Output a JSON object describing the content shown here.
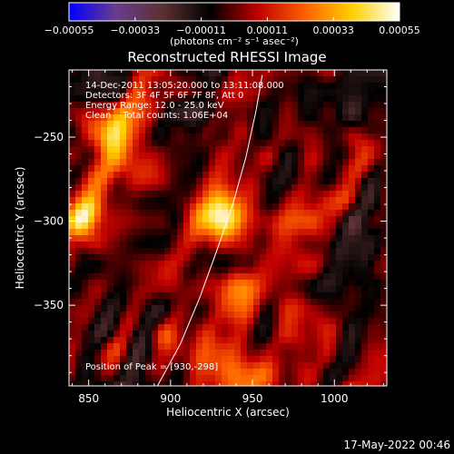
{
  "chart_data": {
    "type": "heatmap",
    "title": "Reconstructed RHESSI Image",
    "xlabel": "Heliocentric X (arcsec)",
    "ylabel": "Heliocentric Y (arcsec)",
    "xlim": [
      838,
      1032
    ],
    "ylim": [
      -398,
      -210
    ],
    "x_ticks": [
      850,
      900,
      950,
      1000
    ],
    "x_tick_labels": [
      "850",
      "900",
      "950",
      "1000"
    ],
    "y_ticks": [
      -250,
      -300,
      -350
    ],
    "y_tick_labels": [
      "−250",
      "−300",
      "−350"
    ],
    "colorbar": {
      "range": [
        -0.00055,
        0.00055
      ],
      "ticks": [
        -0.00055,
        -0.00033,
        -0.00011,
        0.00011,
        0.00033,
        0.00055
      ],
      "tick_labels": [
        "−0.00055",
        "−0.00033",
        "−0.00011",
        "0.00011",
        "0.00033",
        "0.00055"
      ],
      "unit_label": "(photons cm⁻² s⁻¹ asec⁻²)",
      "colors": [
        "#0000ff",
        "#6a3c8c",
        "#5a3030",
        "#000000",
        "#c00000",
        "#ff6000",
        "#ffd000",
        "#ffffff"
      ]
    },
    "annotations": {
      "time_range": "14-Dec-2011 13:05:20.000 to 13:11:08.000",
      "detectors": "Detectors: 3F 4F 5F 6F 7F 8F, Att 0",
      "energy": "Energy Range: 12.0 - 25.0 keV",
      "clean": "Clean    Total counts: 1.06E+04",
      "peak": "Position of Peak = [930,-298]"
    },
    "peak": [
      930,
      -298
    ],
    "peak_value": 0.00055,
    "sources": [
      {
        "x": 930,
        "y": -298,
        "amp": 0.00055
      },
      {
        "x": 848,
        "y": -295,
        "amp": 0.00045
      },
      {
        "x": 858,
        "y": -243,
        "amp": 0.0004
      },
      {
        "x": 873,
        "y": -268,
        "amp": 0.0003
      },
      {
        "x": 940,
        "y": -393,
        "amp": 0.0003
      },
      {
        "x": 935,
        "y": -340,
        "amp": 0.00022
      },
      {
        "x": 990,
        "y": -295,
        "amp": 0.00012
      },
      {
        "x": 902,
        "y": -375,
        "amp": 0.0002
      },
      {
        "x": 1022,
        "y": -262,
        "amp": 0.0002
      }
    ],
    "limb_curve": {
      "x": [
        892,
        906,
        918,
        928,
        938,
        946,
        952,
        956
      ],
      "y": [
        -398,
        -373,
        -345,
        -318,
        -290,
        -262,
        -235,
        -213
      ]
    }
  },
  "footer": {
    "timestamp": "17-May-2022 00:46"
  }
}
